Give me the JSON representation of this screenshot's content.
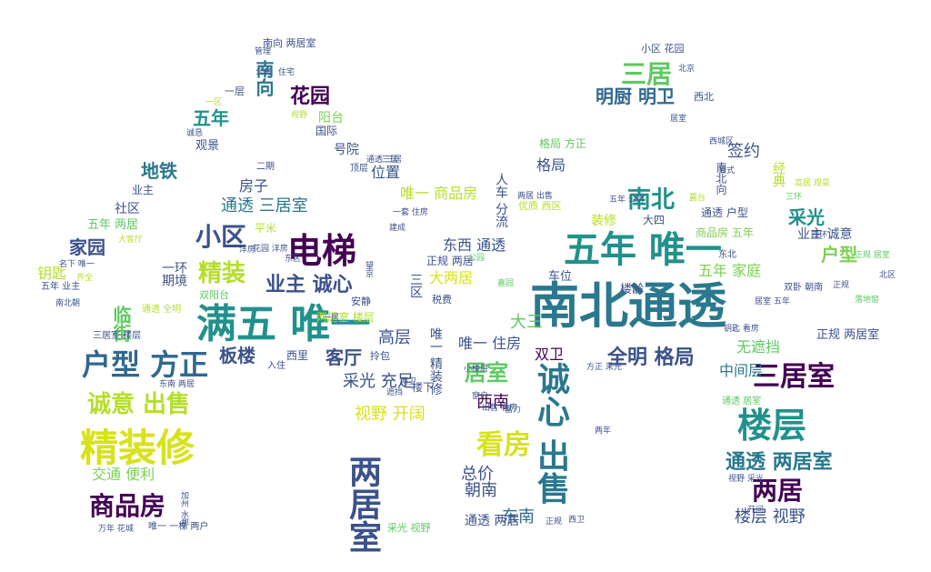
{
  "palette": [
    "#440154",
    "#3b528b",
    "#21918c",
    "#5ec962",
    "#fde725",
    "#2a788e",
    "#7ad151",
    "#31688e",
    "#b5de2b"
  ],
  "words": [
    {
      "t": "南北通透",
      "c": "#2a788e"
    },
    {
      "t": "满五 唯一",
      "c": "#21918c"
    },
    {
      "t": "五年 唯一",
      "c": "#21918c"
    },
    {
      "t": "精装修",
      "c": "#d8e219"
    },
    {
      "t": "电梯",
      "c": "#440154"
    },
    {
      "t": "楼层",
      "c": "#21918c"
    },
    {
      "t": "诚心 出售",
      "c": "#2a788e"
    },
    {
      "t": "两居室",
      "c": "#3b528b"
    },
    {
      "t": "户型 方正",
      "c": "#31688e"
    },
    {
      "t": "三居室",
      "c": "#440154"
    },
    {
      "t": "看房",
      "c": "#d8e219"
    },
    {
      "t": "商品房",
      "c": "#440154"
    },
    {
      "t": "诚意 出售",
      "c": "#b5de2b"
    },
    {
      "t": "小区",
      "c": "#3b528b"
    },
    {
      "t": "精装",
      "c": "#b5de2b"
    },
    {
      "t": "三居",
      "c": "#5ec962"
    },
    {
      "t": "南北",
      "c": "#21918c"
    },
    {
      "t": "两居",
      "c": "#440154"
    },
    {
      "t": "全明 格局",
      "c": "#3b528b"
    },
    {
      "t": "业主 诚心",
      "c": "#3b528b"
    },
    {
      "t": "居室",
      "c": "#5ec962"
    },
    {
      "t": "通透 两居室",
      "c": "#2a788e"
    },
    {
      "t": "花园",
      "c": "#440154"
    },
    {
      "t": "五年",
      "c": "#21918c"
    },
    {
      "t": "南向",
      "c": "#2a788e"
    },
    {
      "t": "明厨 明卫",
      "c": "#31688e"
    },
    {
      "t": "板楼",
      "c": "#3b528b"
    },
    {
      "t": "客厅",
      "c": "#3b528b"
    },
    {
      "t": "临街",
      "c": "#5ec962"
    },
    {
      "t": "地铁",
      "c": "#2a788e"
    },
    {
      "t": "家园",
      "c": "#3b528b"
    },
    {
      "t": "通透 三居室",
      "c": "#2a788e"
    },
    {
      "t": "户型",
      "c": "#7ad151"
    },
    {
      "t": "采光",
      "c": "#21918c"
    },
    {
      "t": "签约",
      "c": "#3b528b"
    },
    {
      "t": "东南",
      "c": "#31688e"
    },
    {
      "t": "西南",
      "c": "#440154"
    },
    {
      "t": "大三",
      "c": "#5ec962"
    },
    {
      "t": "高层",
      "c": "#3b528b"
    },
    {
      "t": "总价",
      "c": "#3b528b"
    },
    {
      "t": "朝南",
      "c": "#3b528b"
    },
    {
      "t": "楼层 视野",
      "c": "#3b528b"
    },
    {
      "t": "视野 开阔",
      "c": "#d8e219"
    },
    {
      "t": "采光 充足",
      "c": "#3b528b"
    },
    {
      "t": "无遮挡",
      "c": "#5ec962"
    },
    {
      "t": "五年 家庭",
      "c": "#7ad151"
    },
    {
      "t": "中间层",
      "c": "#2a788e"
    },
    {
      "t": "唯一 住房",
      "c": "#3b528b"
    },
    {
      "t": "双卫",
      "c": "#440154"
    },
    {
      "t": "东西 通透",
      "c": "#3b528b"
    },
    {
      "t": "交通 便利",
      "c": "#7ad151"
    },
    {
      "t": "大两居",
      "c": "#d8e219"
    },
    {
      "t": "位置",
      "c": "#3b528b"
    },
    {
      "t": "唯一 商品房",
      "c": "#b5de2b"
    },
    {
      "t": "格局",
      "c": "#3b528b"
    },
    {
      "t": "阳台",
      "c": "#7ad151"
    },
    {
      "t": "号院",
      "c": "#3b528b"
    },
    {
      "t": "社区",
      "c": "#3b528b"
    },
    {
      "t": "钥匙",
      "c": "#b5de2b"
    },
    {
      "t": "房子",
      "c": "#3b528b"
    },
    {
      "t": "装修",
      "c": "#b5de2b"
    },
    {
      "t": "业主 诚意",
      "c": "#3b528b"
    },
    {
      "t": "正规 两居室",
      "c": "#3b528b"
    },
    {
      "t": "车位",
      "c": "#3b528b"
    },
    {
      "t": "楼龄",
      "c": "#3b528b"
    },
    {
      "t": "唯一 精装修",
      "c": "#3b528b"
    },
    {
      "t": "两居室 楼层",
      "c": "#b5de2b"
    },
    {
      "t": "通透 两居",
      "c": "#3b528b"
    },
    {
      "t": "西里",
      "c": "#3b528b"
    },
    {
      "t": "国际",
      "c": "#3b528b"
    },
    {
      "t": "观景",
      "c": "#3b528b"
    },
    {
      "t": "五年 两居",
      "c": "#5ec962"
    },
    {
      "t": "业主",
      "c": "#3b528b"
    },
    {
      "t": "五年 业主",
      "c": "#3b528b"
    },
    {
      "t": "格局 方正",
      "c": "#5ec962"
    },
    {
      "t": "小区 花园",
      "c": "#3b528b"
    },
    {
      "t": "一层",
      "c": "#3b528b"
    },
    {
      "t": "南向 两居室",
      "c": "#3b528b"
    },
    {
      "t": "二期",
      "c": "#3b528b"
    },
    {
      "t": "顶层",
      "c": "#3b528b"
    },
    {
      "t": "平米",
      "c": "#b5de2b"
    },
    {
      "t": "正规 两居",
      "c": "#3b528b"
    },
    {
      "t": "东北",
      "c": "#3b528b"
    },
    {
      "t": "商品房 五年",
      "c": "#7ad151"
    },
    {
      "t": "通透 户型",
      "c": "#3b528b"
    },
    {
      "t": "大四",
      "c": "#3b528b"
    },
    {
      "t": "南北向",
      "c": "#3b528b"
    },
    {
      "t": "经典",
      "c": "#b5de2b"
    },
    {
      "t": "税费",
      "c": "#3b528b"
    },
    {
      "t": "公园",
      "c": "#5ec962"
    },
    {
      "t": "落地窗",
      "c": "#5ec962"
    },
    {
      "t": "北区",
      "c": "#3b528b"
    },
    {
      "t": "人车 分流",
      "c": "#3b528b"
    },
    {
      "t": "一期",
      "c": "#3b528b"
    },
    {
      "t": "环境",
      "c": "#3b528b"
    },
    {
      "t": "双阳台",
      "c": "#5ec962"
    },
    {
      "t": "入住",
      "c": "#3b528b"
    },
    {
      "t": "拎包",
      "c": "#3b528b"
    },
    {
      "t": "通透 居室",
      "c": "#5ec962"
    },
    {
      "t": "万年 花城",
      "c": "#3b528b"
    },
    {
      "t": "唯一 一梯 两户",
      "c": "#3b528b"
    },
    {
      "t": "三居室 楼层",
      "c": "#3b528b"
    },
    {
      "t": "东南 两居",
      "c": "#3b528b"
    },
    {
      "t": "通透 全明",
      "c": "#b5de2b"
    },
    {
      "t": "安静",
      "c": "#3b528b"
    },
    {
      "t": "优质 西区",
      "c": "#b5de2b"
    },
    {
      "t": "双卧 朝南",
      "c": "#3b528b"
    },
    {
      "t": "三环",
      "c": "#5ec962"
    },
    {
      "t": "四环",
      "c": "#3b528b"
    },
    {
      "t": "正规",
      "c": "#3b528b"
    },
    {
      "t": "西城区",
      "c": "#3b528b"
    },
    {
      "t": "北京",
      "c": "#3b528b"
    },
    {
      "t": "西北",
      "c": "#3b528b"
    },
    {
      "t": "公房",
      "c": "#3b528b"
    },
    {
      "t": "住宅",
      "c": "#3b528b"
    },
    {
      "t": "一区",
      "c": "#b5de2b"
    },
    {
      "t": "诚恳",
      "c": "#3b528b"
    },
    {
      "t": "方正 采光",
      "c": "#3b528b"
    },
    {
      "t": "开间",
      "c": "#3b528b"
    },
    {
      "t": "视野 采光",
      "c": "#3b528b"
    },
    {
      "t": "东区",
      "c": "#3b528b"
    },
    {
      "t": "采光 视野",
      "c": "#5ec962"
    },
    {
      "t": "三区",
      "c": "#3b528b"
    },
    {
      "t": "楼下",
      "c": "#3b528b"
    },
    {
      "t": "小楼层",
      "c": "#3b528b"
    },
    {
      "t": "正规",
      "c": "#3b528b"
    },
    {
      "t": "正规 居室",
      "c": "#5ec962"
    },
    {
      "t": "居室 五年",
      "c": "#3b528b"
    },
    {
      "t": "钥匙 看房",
      "c": "#3b528b"
    },
    {
      "t": "一居",
      "c": "#3b528b"
    },
    {
      "t": "遮挡",
      "c": "#3b528b"
    },
    {
      "t": "两卫",
      "c": "#3b528b"
    },
    {
      "t": "一套 住房",
      "c": "#3b528b"
    },
    {
      "t": "通透 三居",
      "c": "#3b528b"
    },
    {
      "t": "三居",
      "c": "#3b528b"
    },
    {
      "t": "建成",
      "c": "#3b528b"
    },
    {
      "t": "望京",
      "c": "#3b528b"
    },
    {
      "t": "洋房",
      "c": "#3b528b"
    },
    {
      "t": "花园 洋房",
      "c": "#3b528b"
    },
    {
      "t": "南北朝",
      "c": "#3b528b"
    },
    {
      "t": "齐全",
      "c": "#b5de2b"
    },
    {
      "t": "名下 唯一",
      "c": "#3b528b"
    },
    {
      "t": "大客厅",
      "c": "#b5de2b"
    },
    {
      "t": "管理",
      "c": "#3b528b"
    },
    {
      "t": "视野",
      "c": "#b5de2b"
    },
    {
      "t": "五年 公房",
      "c": "#3b528b"
    },
    {
      "t": "露台",
      "c": "#b5de2b"
    },
    {
      "t": "高居 观景",
      "c": "#b5de2b"
    },
    {
      "t": "复式",
      "c": "#3b528b"
    },
    {
      "t": "嘉园",
      "c": "#5ec962"
    },
    {
      "t": "富力",
      "c": "#3b528b"
    },
    {
      "t": "窗户",
      "c": "#3b528b"
    },
    {
      "t": "西卫",
      "c": "#3b528b"
    },
    {
      "t": "加州 水郡",
      "c": "#3b528b"
    },
    {
      "t": "两居 出售",
      "c": "#3b528b"
    },
    {
      "t": "居室",
      "c": "#3b528b"
    },
    {
      "t": "出售 看房",
      "c": "#3b528b"
    },
    {
      "t": "两年",
      "c": "#3b528b"
    },
    {
      "t": "唯一 公房",
      "c": "#3b528b"
    },
    {
      "t": "东城",
      "c": "#3b528b"
    },
    {
      "t": "家庭 唯一",
      "c": "#3b528b"
    },
    {
      "t": "五年 唯一",
      "c": "#3b528b"
    }
  ]
}
